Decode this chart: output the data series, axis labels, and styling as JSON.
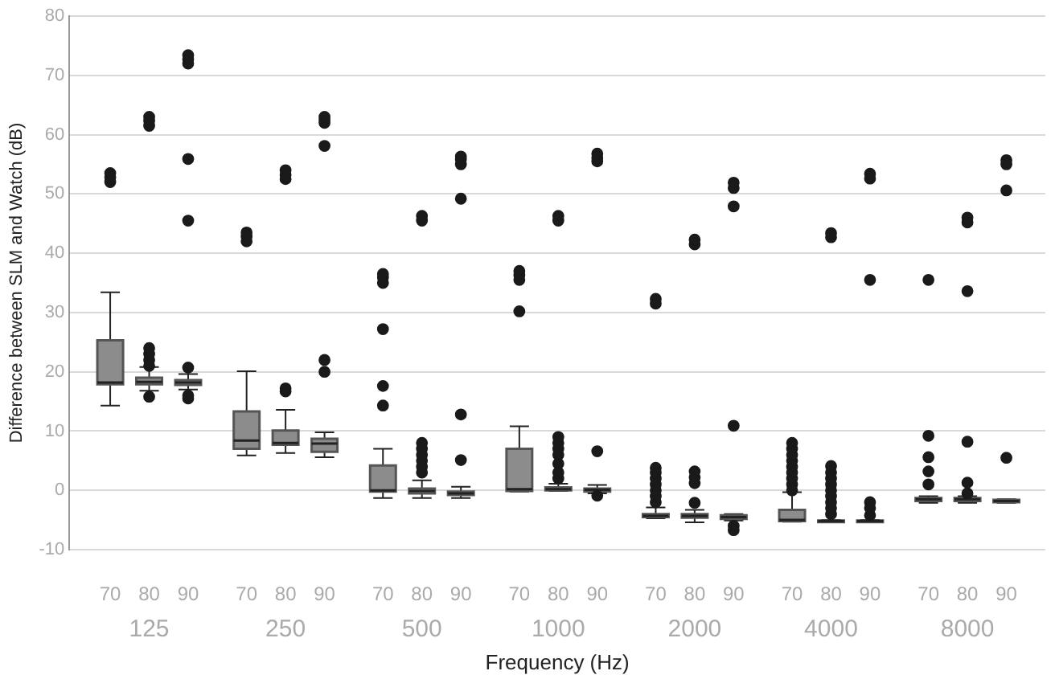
{
  "chart_data": {
    "type": "box",
    "xlabel": "Frequency (Hz)",
    "ylabel": "Difference between SLM and Watch (dB)",
    "categories": [
      "70",
      "80",
      "90",
      "70",
      "80",
      "90",
      "70",
      "80",
      "90",
      "70",
      "80",
      "90",
      "70",
      "80",
      "90",
      "70",
      "80",
      "90",
      "70",
      "80",
      "90"
    ],
    "annotations": [
      "125",
      "250",
      "500",
      "1000",
      "2000",
      "4000",
      "8000"
    ],
    "color": "#8c8c8c",
    "ylim": [
      -10,
      80
    ],
    "yticks": [
      -10,
      0,
      10,
      20,
      30,
      40,
      50,
      60,
      70,
      80
    ],
    "grid": "y",
    "boxes": [
      {
        "low": 14.3,
        "q1": 17.9,
        "median": 18.2,
        "q3": 25.3,
        "high": 33.4,
        "outliers": [
          52,
          52.8,
          53.5
        ]
      },
      {
        "low": 16.8,
        "q1": 17.9,
        "median": 18.3,
        "q3": 19,
        "high": 20.8,
        "outliers": [
          21,
          22,
          23,
          24,
          15.8,
          61.5,
          62.3,
          63
        ]
      },
      {
        "low": 17,
        "q1": 17.8,
        "median": 18.2,
        "q3": 18.6,
        "high": 19.6,
        "outliers": [
          20.7,
          16,
          15.5,
          55.9,
          45.5,
          72,
          72.7,
          73.4
        ]
      },
      {
        "low": 5.9,
        "q1": 7,
        "median": 8.4,
        "q3": 13.3,
        "high": 20.1,
        "outliers": [
          42,
          42.8,
          43.5
        ]
      },
      {
        "low": 6.3,
        "q1": 7.7,
        "median": 8,
        "q3": 10.1,
        "high": 13.6,
        "outliers": [
          16.7,
          17.2,
          52.5,
          53.2,
          54
        ]
      },
      {
        "low": 5.6,
        "q1": 6.5,
        "median": 7.9,
        "q3": 8.7,
        "high": 9.8,
        "outliers": [
          20,
          22,
          58.1,
          62,
          62.5,
          63
        ]
      },
      {
        "low": -1.3,
        "q1": -0.2,
        "median": 0,
        "q3": 4.2,
        "high": 7,
        "outliers": [
          14.3,
          17.6,
          27.2,
          35,
          35.9,
          36.5
        ]
      },
      {
        "low": -1.3,
        "q1": -0.5,
        "median": -0.1,
        "q3": 0.3,
        "high": 1.7,
        "outliers": [
          3,
          4,
          5,
          6,
          7,
          8,
          45.5,
          46.3
        ]
      },
      {
        "low": -1.3,
        "q1": -0.8,
        "median": -0.5,
        "q3": -0.2,
        "high": 0.6,
        "outliers": [
          5.1,
          12.8,
          49.2,
          55,
          55.8,
          56.3
        ]
      },
      {
        "low": -0.2,
        "q1": -0.1,
        "median": 0.2,
        "q3": 7,
        "high": 10.8,
        "outliers": [
          30.2,
          35.5,
          36.3,
          37
        ]
      },
      {
        "low": -0.1,
        "q1": 0,
        "median": 0.2,
        "q3": 0.5,
        "high": 1.1,
        "outliers": [
          2,
          3,
          4.5,
          6,
          7,
          8,
          9,
          45.5,
          46.3
        ]
      },
      {
        "low": -0.5,
        "q1": -0.2,
        "median": 0.1,
        "q3": 0.3,
        "high": 0.9,
        "outliers": [
          6.6,
          -0.9,
          55.5,
          56.1,
          56.8
        ]
      },
      {
        "low": -4.7,
        "q1": -4.5,
        "median": -4.3,
        "q3": -4,
        "high": -2.9,
        "outliers": [
          -2,
          -1,
          0,
          1,
          2,
          3,
          3.8,
          31.5,
          32.3
        ]
      },
      {
        "low": -5.4,
        "q1": -4.6,
        "median": -4.3,
        "q3": -4,
        "high": -3.3,
        "outliers": [
          -2.1,
          1.2,
          2.2,
          3.2,
          41.5,
          42.3
        ]
      },
      {
        "low": -5.1,
        "q1": -4.8,
        "median": -4.5,
        "q3": -4.2,
        "high": -4,
        "outliers": [
          -6,
          -6.7,
          10.9,
          47.9,
          51,
          51.9
        ]
      },
      {
        "low": -5.3,
        "q1": -5.2,
        "median": -5,
        "q3": -3.3,
        "high": -0.3,
        "outliers": [
          0,
          1,
          2,
          3,
          4,
          5,
          6,
          7,
          8
        ]
      },
      {
        "low": -5.4,
        "q1": -5.3,
        "median": -5.2,
        "q3": -5.1,
        "high": -5,
        "outliers": [
          -4,
          -3,
          -2,
          -1,
          0,
          1,
          2,
          3,
          4.1,
          42.7,
          43.4
        ]
      },
      {
        "low": -5.4,
        "q1": -5.3,
        "median": -5.2,
        "q3": -5.1,
        "high": -5,
        "outliers": [
          -4.2,
          -3,
          -2,
          35.5,
          52.6,
          53.4
        ]
      },
      {
        "low": -2.1,
        "q1": -1.8,
        "median": -1.5,
        "q3": -1.3,
        "high": -1,
        "outliers": [
          1,
          3.2,
          5.6,
          9.2,
          35.5
        ]
      },
      {
        "low": -2.1,
        "q1": -1.8,
        "median": -1.5,
        "q3": -1.3,
        "high": -1,
        "outliers": [
          -0.5,
          1.3,
          8.2,
          33.6,
          45.2,
          46
        ]
      },
      {
        "low": -2.1,
        "q1": -2,
        "median": -1.8,
        "q3": -1.6,
        "high": -1.5,
        "outliers": [
          5.5,
          50.6,
          55,
          55.7
        ]
      }
    ]
  }
}
